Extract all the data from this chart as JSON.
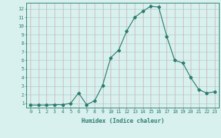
{
  "x": [
    0,
    1,
    2,
    3,
    4,
    5,
    6,
    7,
    8,
    9,
    10,
    11,
    12,
    13,
    14,
    15,
    16,
    17,
    18,
    19,
    20,
    21,
    22,
    23
  ],
  "y": [
    0.8,
    0.8,
    0.8,
    0.85,
    0.85,
    1.0,
    2.2,
    0.85,
    1.3,
    3.1,
    6.3,
    7.2,
    9.4,
    11.0,
    11.7,
    12.3,
    12.2,
    8.8,
    6.0,
    5.7,
    4.0,
    2.6,
    2.2,
    2.35
  ],
  "line_color": "#2d7d6e",
  "marker": "D",
  "marker_size": 2.2,
  "bg_color": "#d8f0ee",
  "grid_color_h": "#aacfcc",
  "grid_color_v": "#c9aaaa",
  "xlabel": "Humidex (Indice chaleur)",
  "xlim": [
    -0.5,
    23.5
  ],
  "ylim": [
    0.5,
    12.7
  ],
  "yticks": [
    1,
    2,
    3,
    4,
    5,
    6,
    7,
    8,
    9,
    10,
    11,
    12
  ],
  "xticks": [
    0,
    1,
    2,
    3,
    4,
    5,
    6,
    7,
    8,
    9,
    10,
    11,
    12,
    13,
    14,
    15,
    16,
    17,
    18,
    19,
    20,
    21,
    22,
    23
  ]
}
